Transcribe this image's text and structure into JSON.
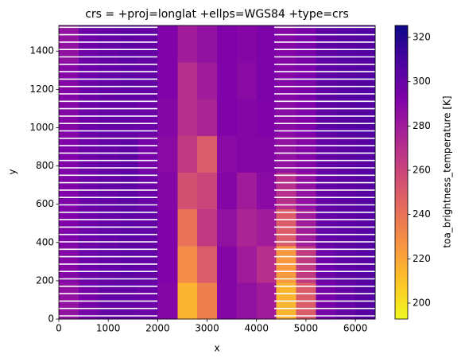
{
  "chart_data": {
    "type": "image",
    "title": "crs = +proj=longlat +ellps=WGS84 +type=crs",
    "x_label": "x",
    "y_label": "y",
    "xlim": [
      0,
      6400
    ],
    "ylim": [
      0,
      1534
    ],
    "xticks": [
      0,
      1000,
      2000,
      3000,
      4000,
      5000,
      6000
    ],
    "yticks": [
      0,
      200,
      400,
      600,
      800,
      1000,
      1200,
      1400
    ],
    "colormap": "plasma_r",
    "colorbar_label": "toa_brightness_temperature [K]",
    "clim": [
      192.8,
      325.4
    ],
    "colorbar_ticks": [
      200,
      220,
      240,
      260,
      280,
      300,
      320
    ],
    "z": [
      [
        285,
        295,
        300,
        300,
        298,
        290,
        215,
        235,
        290,
        285,
        280,
        215,
        250,
        295,
        300,
        305
      ],
      [
        290,
        298,
        300,
        302,
        300,
        292,
        230,
        250,
        290,
        280,
        270,
        225,
        265,
        298,
        302,
        305
      ],
      [
        292,
        298,
        300,
        302,
        300,
        292,
        240,
        265,
        285,
        275,
        280,
        250,
        280,
        300,
        303,
        305
      ],
      [
        292,
        298,
        300,
        302,
        298,
        290,
        255,
        260,
        290,
        280,
        288,
        270,
        285,
        300,
        303,
        305
      ],
      [
        292,
        298,
        300,
        302,
        295,
        288,
        265,
        250,
        288,
        290,
        290,
        285,
        290,
        300,
        303,
        305
      ],
      [
        290,
        298,
        300,
        300,
        298,
        290,
        270,
        275,
        292,
        290,
        292,
        288,
        292,
        302,
        305,
        306
      ],
      [
        290,
        298,
        300,
        302,
        300,
        292,
        270,
        280,
        292,
        288,
        293,
        290,
        293,
        302,
        305,
        306
      ],
      [
        285,
        298,
        300,
        302,
        300,
        292,
        280,
        285,
        292,
        290,
        293,
        290,
        294,
        302,
        305,
        306
      ]
    ]
  }
}
